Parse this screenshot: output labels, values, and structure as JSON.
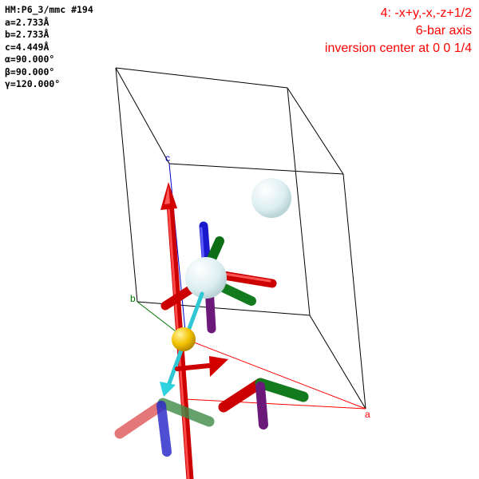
{
  "cell_info": {
    "space_group": "HM:P6_3/mmc #194",
    "a": "a=2.733Å",
    "b": "b=2.733Å",
    "c": "c=4.449Å",
    "alpha": "α=90.000°",
    "beta": "β=90.000°",
    "gamma": "γ=120.000°"
  },
  "operation": {
    "line1": "4: -x+y,-x,-z+1/2",
    "line2": "6-bar axis",
    "line3": "inversion center at 0 0 1/4"
  },
  "axes": {
    "a": "a",
    "b": "b",
    "c": "c"
  },
  "colors": {
    "a_axis": "#ff0000",
    "b_axis": "#007700",
    "c_axis": "#0000cc",
    "symmetry_axis": "#dd0000",
    "inversion_center": "#f2c200",
    "atom": "#d6f0f2",
    "connector": "#3fd6e0"
  }
}
